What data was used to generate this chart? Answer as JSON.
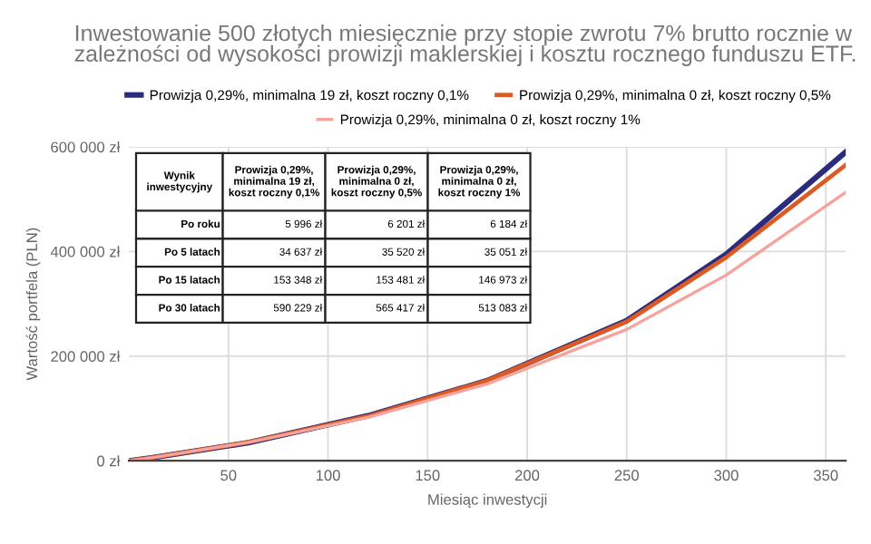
{
  "chart_data": {
    "type": "line",
    "title": "Inwestowanie 500 złotych miesięcznie przy stopie zwrotu 7% brutto rocznie w zależności od wysokości prowizji maklerskiej i kosztu rocznego funduszu ETF.",
    "xlabel": "Miesiąc inwestycji",
    "ylabel": "Wartość portfela (PLN)",
    "x": [
      1,
      12,
      60,
      120,
      180,
      250,
      300,
      360
    ],
    "series": [
      {
        "name": "Prowizja 0,29%, minimalna 19 zł, koszt roczny 0,1%",
        "color": "#2b2d7c",
        "values": [
          500,
          5996,
          34637,
          86000,
          153348,
          268000,
          395000,
          590229
        ]
      },
      {
        "name": "Prowizja 0,29%, minimalna 0 zł, koszt roczny 0,5%",
        "color": "#dc5a23",
        "values": [
          500,
          6201,
          35520,
          85000,
          153481,
          266000,
          389000,
          565417
        ]
      },
      {
        "name": "Prowizja 0,29%, minimalna 0 zł, koszt roczny 1%",
        "color": "#f4a49c",
        "values": [
          500,
          6184,
          35051,
          83000,
          146973,
          251000,
          355000,
          513083
        ]
      }
    ],
    "annotations": [
      "Wynik\ninwestycyjny",
      "Prowizja 0,29%,\nminimalna 19 zł,\nkoszt roczny 0,1%",
      "Prowizja 0,29%,\nminimalna 0 zł,\nkoszt roczny 0,5%",
      "Prowizja 0,29%,\nminimalna 0 zł,\nkoszt roczny 1%",
      "Po roku",
      "5 996 zł",
      "6 201 zł",
      "6 184 zł",
      "Po 5 latach",
      "34 637 zł",
      "35 520 zł",
      "35 051 zł",
      "Po 15 latach",
      "153 348 zł",
      "153 481 zł",
      "146 973 zł",
      "Po 30 latach",
      "590 229 zł",
      "565 417 zł",
      "513 083 zł"
    ],
    "xlim": [
      0,
      360
    ],
    "xticks": [
      50,
      100,
      150,
      200,
      250,
      300,
      350
    ],
    "ylim": [
      0,
      600000
    ],
    "yticks": [
      {
        "value": 0,
        "label": "0 zł"
      },
      {
        "value": 200000,
        "label": "200 000 zł"
      },
      {
        "value": 400000,
        "label": "400 000 zł"
      },
      {
        "value": 600000,
        "label": "600 000 zł"
      }
    ],
    "grid": true,
    "legend": "top",
    "marker": "none",
    "line_style": "solid"
  }
}
